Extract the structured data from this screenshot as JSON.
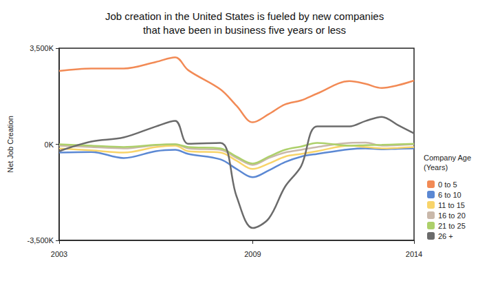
{
  "chart_data": {
    "type": "line",
    "title": "Job creation in the United States is fueled by new companies\nthat have been in business five years or less",
    "y_label": "Net Job Creation",
    "legend_title": "Company Age (Years)",
    "legend": "right",
    "grid": false,
    "x": [
      2003,
      2004,
      2005,
      2006,
      2006.6,
      2007,
      2008,
      2008.5,
      2009,
      2009.5,
      2010,
      2010.5,
      2011,
      2012,
      2012.5,
      2013,
      2013.5,
      2014
    ],
    "xlim": [
      2003,
      2014
    ],
    "xticks": [
      2003,
      2009,
      2014
    ],
    "ylim": [
      -3500,
      3500
    ],
    "yticks": [
      {
        "value": -3500,
        "label": "-3,500K"
      },
      {
        "value": 0,
        "label": "0K"
      },
      {
        "value": 3500,
        "label": "3,500K"
      }
    ],
    "series": [
      {
        "name": "0 to 5",
        "color": "#f28a55",
        "values": [
          2670,
          2760,
          2760,
          3000,
          3170,
          2700,
          2000,
          1400,
          800,
          1100,
          1450,
          1600,
          1850,
          2300,
          2200,
          2050,
          2150,
          2320
        ]
      },
      {
        "name": "6 to 10",
        "color": "#5b88d3",
        "values": [
          -300,
          -280,
          -500,
          -250,
          -200,
          -350,
          -550,
          -900,
          -1200,
          -950,
          -650,
          -450,
          -350,
          -180,
          -150,
          -180,
          -160,
          -150
        ]
      },
      {
        "name": "11 to 15",
        "color": "#f8d46a",
        "values": [
          -150,
          -220,
          -300,
          -100,
          -50,
          -250,
          -300,
          -600,
          -900,
          -700,
          -450,
          -350,
          -250,
          -50,
          -100,
          -150,
          -130,
          -100
        ]
      },
      {
        "name": "16 to 20",
        "color": "#c9b8aa",
        "values": [
          -50,
          -100,
          -150,
          -30,
          0,
          -150,
          -200,
          -500,
          -750,
          -500,
          -300,
          -200,
          -100,
          50,
          60,
          -50,
          -30,
          0
        ]
      },
      {
        "name": "21 to 25",
        "color": "#add06a",
        "values": [
          0,
          -50,
          -100,
          -20,
          0,
          -100,
          -150,
          -450,
          -700,
          -450,
          -200,
          -80,
          50,
          -50,
          -30,
          -20,
          0,
          20
        ]
      },
      {
        "name": "26 +",
        "color": "#6b6b6b",
        "values": [
          -250,
          100,
          250,
          650,
          850,
          20,
          50,
          -1900,
          -3050,
          -2700,
          -1550,
          -800,
          650,
          650,
          850,
          1000,
          700,
          400
        ]
      }
    ]
  }
}
